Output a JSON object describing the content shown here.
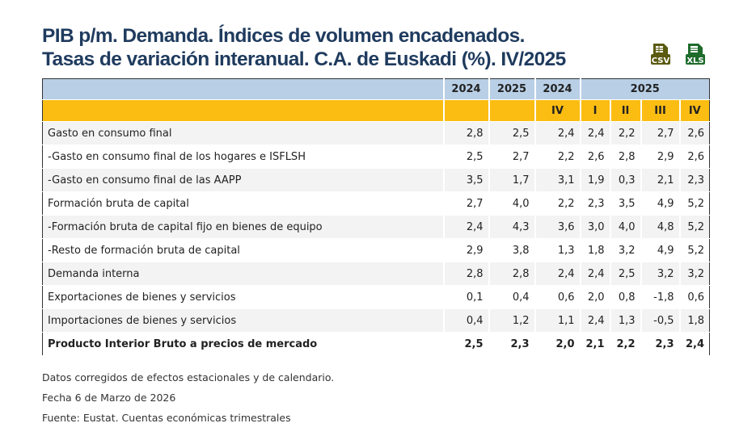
{
  "title": {
    "line1": "PIB p/m. Demanda. Índices de volumen encadenados.",
    "line2": "Tasas de variación interanual. C.A. de Euskadi (%). IV/2025"
  },
  "downloads": [
    {
      "label": "CSV",
      "color": "#5a5a10"
    },
    {
      "label": "XLS",
      "color": "#1e6b2c"
    }
  ],
  "table": {
    "header_years": [
      "2024",
      "2025",
      "2024",
      "2025"
    ],
    "header_quarters": [
      "",
      "",
      "IV",
      "I",
      "II",
      "III",
      "IV"
    ],
    "rows": [
      {
        "label": "Gasto en consumo final",
        "values": [
          "2,8",
          "2,5",
          "2,4",
          "2,4",
          "2,2",
          "2,7",
          "2,6"
        ]
      },
      {
        "label": "-Gasto en consumo final de los hogares e ISFLSH",
        "values": [
          "2,5",
          "2,7",
          "2,2",
          "2,6",
          "2,8",
          "2,9",
          "2,6"
        ]
      },
      {
        "label": "-Gasto en consumo final de las AAPP",
        "values": [
          "3,5",
          "1,7",
          "3,1",
          "1,9",
          "0,3",
          "2,1",
          "2,3"
        ]
      },
      {
        "label": "Formación bruta de capital",
        "values": [
          "2,7",
          "4,0",
          "2,2",
          "2,3",
          "3,5",
          "4,9",
          "5,2"
        ]
      },
      {
        "label": "-Formación bruta de capital fijo en bienes de equipo",
        "values": [
          "2,4",
          "4,3",
          "3,6",
          "3,0",
          "4,0",
          "4,8",
          "5,2"
        ]
      },
      {
        "label": "-Resto de formación bruta de capital",
        "values": [
          "2,9",
          "3,8",
          "1,3",
          "1,8",
          "3,2",
          "4,9",
          "5,2"
        ]
      },
      {
        "label": "Demanda interna",
        "values": [
          "2,8",
          "2,8",
          "2,4",
          "2,4",
          "2,5",
          "3,2",
          "3,2"
        ]
      },
      {
        "label": "Exportaciones de bienes y servicios",
        "values": [
          "0,1",
          "0,4",
          "0,6",
          "2,0",
          "0,8",
          "-1,8",
          "0,6"
        ]
      },
      {
        "label": "Importaciones de bienes y servicios",
        "values": [
          "0,4",
          "1,2",
          "1,1",
          "2,4",
          "1,3",
          "-0,5",
          "1,8"
        ]
      },
      {
        "label": "Producto Interior Bruto a precios de mercado",
        "values": [
          "2,5",
          "2,3",
          "2,0",
          "2,1",
          "2,2",
          "2,3",
          "2,4"
        ],
        "bold": true
      }
    ]
  },
  "notes": [
    "Datos corregidos de efectos estacionales y de calendario.",
    "Fecha 6 de Marzo de 2026",
    "Fuente: Eustat. Cuentas económicas trimestrales"
  ]
}
